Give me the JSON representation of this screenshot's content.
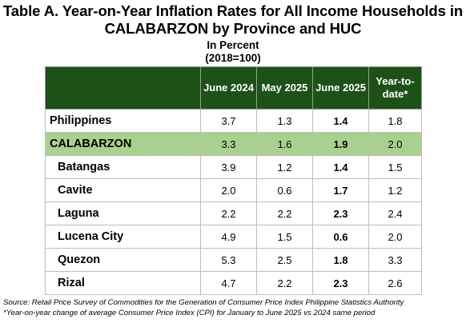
{
  "title": {
    "line1": "Table A. Year-on-Year Inflation Rates for All Income Households in",
    "line2": "CALABARZON by Province and HUC",
    "unit": "In Percent",
    "base": "(2018=100)"
  },
  "table": {
    "columns": [
      "June 2024",
      "May 2025",
      "June 2025",
      "Year-to-",
      "date*"
    ],
    "rows": [
      {
        "label": "Philippines",
        "june2024": "3.7",
        "may2025": "1.3",
        "june2025": "1.4",
        "ytd": "1.8"
      },
      {
        "label": "CALABARZON",
        "june2024": "3.3",
        "may2025": "1.6",
        "june2025": "1.9",
        "ytd": "2.0"
      },
      {
        "label": "Batangas",
        "june2024": "3.9",
        "may2025": "1.2",
        "june2025": "1.4",
        "ytd": "1.5"
      },
      {
        "label": "Cavite",
        "june2024": "2.0",
        "may2025": "0.6",
        "june2025": "1.7",
        "ytd": "1.2"
      },
      {
        "label": "Laguna",
        "june2024": "2.2",
        "may2025": "2.2",
        "june2025": "2.3",
        "ytd": "2.4"
      },
      {
        "label": "Lucena City",
        "june2024": "4.9",
        "may2025": "1.5",
        "june2025": "0.6",
        "ytd": "2.0"
      },
      {
        "label": "Quezon",
        "june2024": "5.3",
        "may2025": "2.5",
        "june2025": "1.8",
        "ytd": "3.3"
      },
      {
        "label": "Rizal",
        "june2024": "4.7",
        "may2025": "2.2",
        "june2025": "2.3",
        "ytd": "2.6"
      }
    ],
    "highlight_color": "#a9d08e",
    "header_color": "#1e5118"
  },
  "notes": {
    "source": "Source: Retail Price Survey of Commodities for the Generation of Consumer Price Index Philippine Statistics Authority",
    "footnote": "*Year-on-year change of average Consumer Price Index (CPI) for January to June 2025 vs 2024 same period"
  }
}
